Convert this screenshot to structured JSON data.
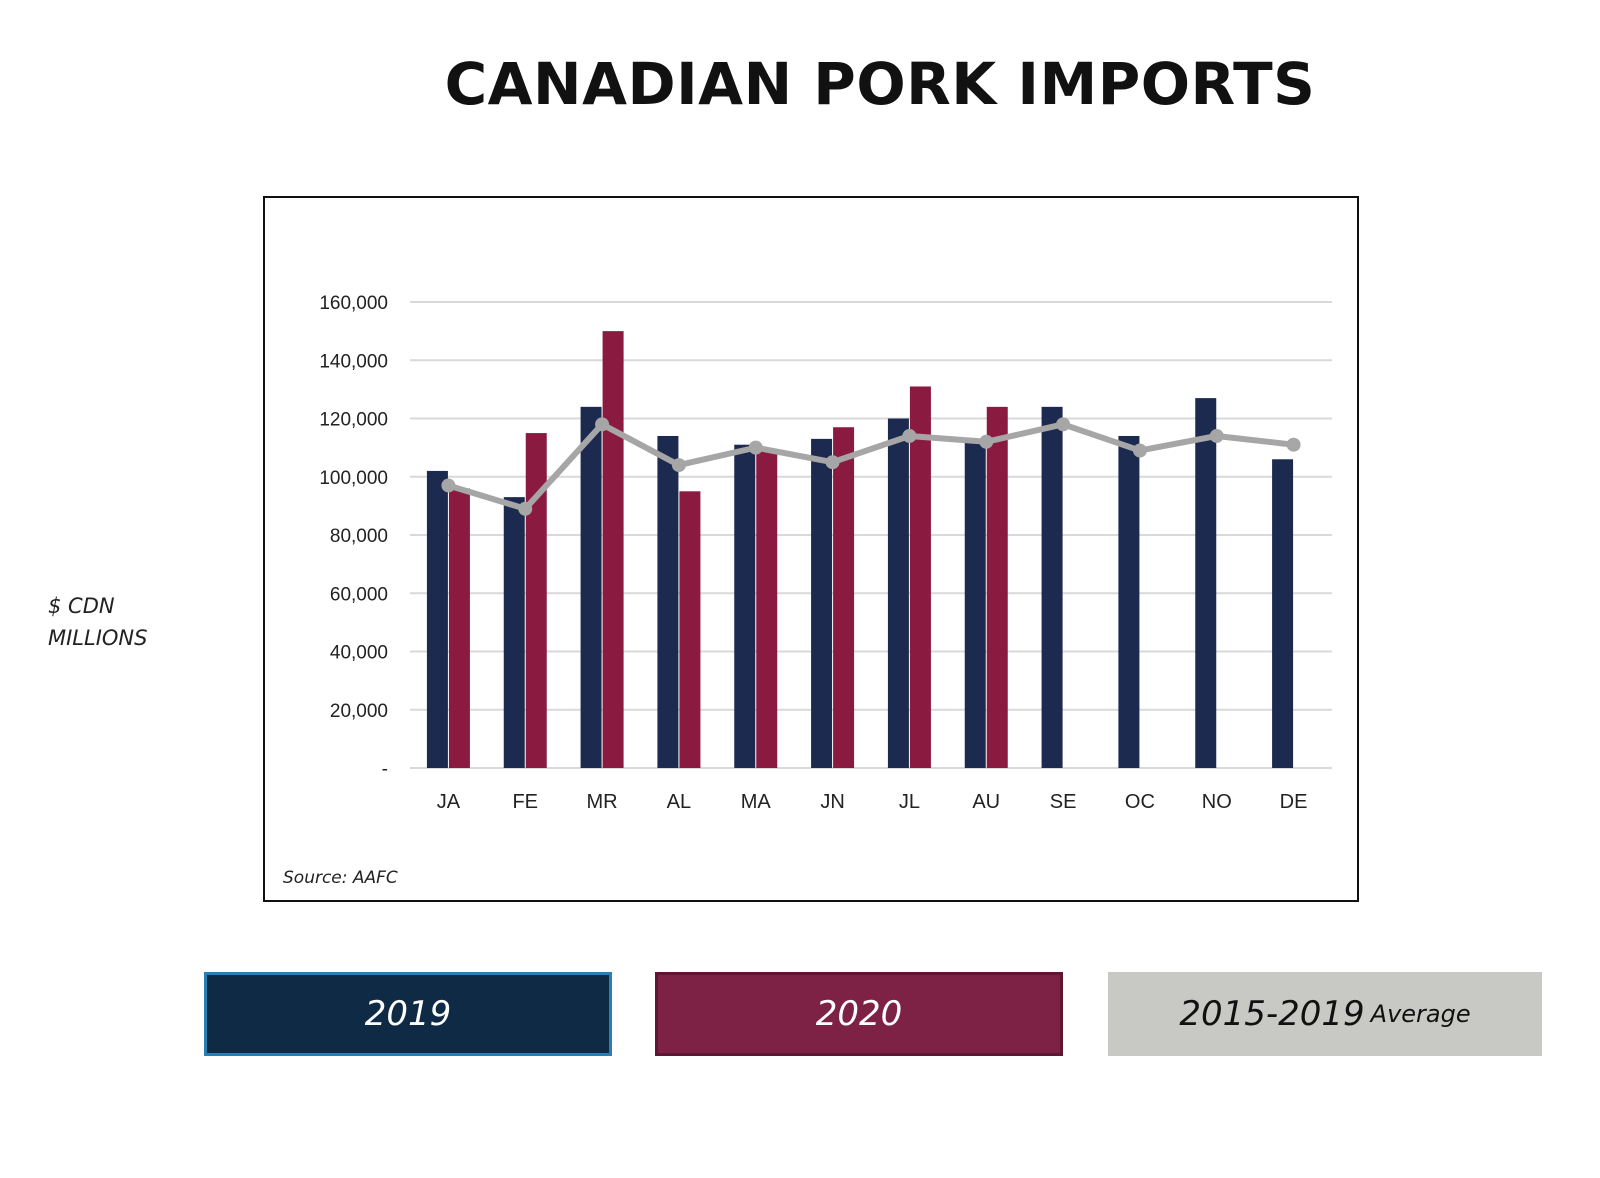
{
  "title": "CANADIAN PORK IMPORTS",
  "y_axis_label_line1": "$ CDN",
  "y_axis_label_line2": "MILLIONS",
  "source": "Source: AAFC",
  "legend": {
    "series_2019": "2019",
    "series_2020": "2020",
    "series_avg_main": "2015-2019",
    "series_avg_sub": "Average"
  },
  "colors": {
    "series_2019": "#1b2a4e",
    "series_2020": "#8b1a40",
    "average": "#a6a6a6",
    "grid": "#d9d9d9"
  },
  "chart_data": {
    "type": "bar",
    "title": "CANADIAN PORK IMPORTS",
    "ylabel": "$ CDN MILLIONS",
    "xlabel": "",
    "categories": [
      "JA",
      "FE",
      "MR",
      "AL",
      "MA",
      "JN",
      "JL",
      "AU",
      "SE",
      "OC",
      "NO",
      "DE"
    ],
    "ylim": [
      0,
      160000
    ],
    "yticks": [
      0,
      20000,
      40000,
      60000,
      80000,
      100000,
      120000,
      140000,
      160000
    ],
    "ytick_labels": [
      "-",
      "20,000",
      "40,000",
      "60,000",
      "80,000",
      "100,000",
      "120,000",
      "140,000",
      "160,000"
    ],
    "grid": true,
    "series": [
      {
        "name": "2019",
        "type": "bar",
        "values": [
          102000,
          93000,
          124000,
          114000,
          111000,
          113000,
          120000,
          112000,
          124000,
          114000,
          127000,
          106000
        ]
      },
      {
        "name": "2020",
        "type": "bar",
        "values": [
          96000,
          115000,
          150000,
          95000,
          109000,
          117000,
          131000,
          124000,
          null,
          null,
          null,
          null
        ]
      },
      {
        "name": "2015-2019 Average",
        "type": "line",
        "values": [
          97000,
          89000,
          118000,
          104000,
          110000,
          105000,
          114000,
          112000,
          118000,
          109000,
          114000,
          111000
        ]
      }
    ]
  }
}
